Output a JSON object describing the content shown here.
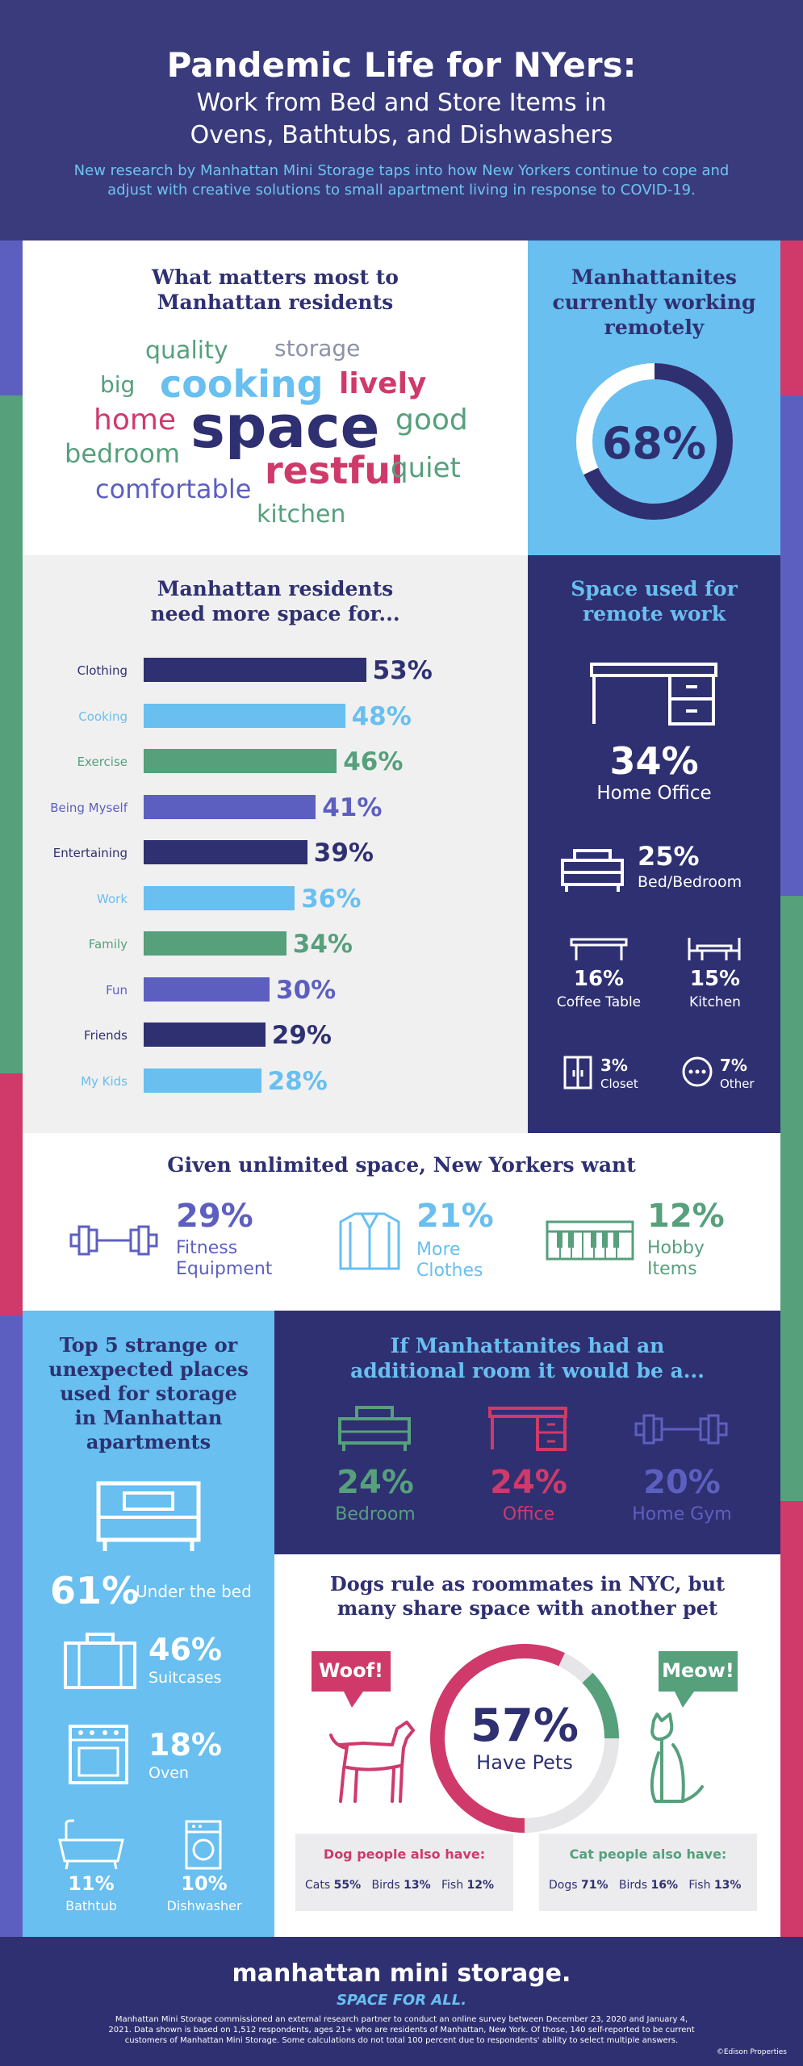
{
  "header": {
    "title": "Pandemic Life for NYers:",
    "subtitle_line1": "Work from Bed and Store Items in",
    "subtitle_line2": "Ovens, Bathtubs, and Dishwashers",
    "description": "New research by Manhattan Mini Storage taps into how New Yorkers continue to cope and adjust with creative solutions to small apartment living in response to COVID-19."
  },
  "colors": {
    "navy": "#2f3071",
    "light_blue": "#68bff0",
    "green": "#56a07c",
    "pink": "#cf3a6a",
    "purple": "#5d5fc0"
  },
  "word_cloud": {
    "title_line1": "What matters most to",
    "title_line2": "Manhattan residents",
    "words": [
      "quality",
      "storage",
      "big",
      "cooking",
      "lively",
      "home",
      "space",
      "good",
      "bedroom",
      "restful",
      "quiet",
      "comfortable",
      "kitchen"
    ]
  },
  "remote": {
    "title_line1": "Manhattanites",
    "title_line2": "currently working",
    "title_line3": "remotely",
    "value_label": "68%",
    "value": 68
  },
  "space_needs": {
    "title_line1": "Manhattan residents",
    "title_line2": "need more space for..."
  },
  "chart_data": {
    "type": "bar",
    "title": "Manhattan residents need more space for...",
    "categories": [
      "Clothing",
      "Cooking",
      "Exercise",
      "Being Myself",
      "Entertaining",
      "Work",
      "Family",
      "Fun",
      "Friends",
      "My Kids"
    ],
    "values": [
      53,
      48,
      46,
      41,
      39,
      36,
      34,
      30,
      29,
      28
    ],
    "value_labels": [
      "53%",
      "48%",
      "46%",
      "41%",
      "39%",
      "36%",
      "34%",
      "30%",
      "29%",
      "28%"
    ],
    "unit": "%"
  },
  "remote_space": {
    "title_line1": "Space used for",
    "title_line2": "remote work",
    "home_office": {
      "value": "34%",
      "label": "Home Office"
    },
    "bedroom": {
      "value": "25%",
      "label": "Bed/Bedroom"
    },
    "coffee_table": {
      "value": "16%",
      "label": "Coffee Table"
    },
    "kitchen": {
      "value": "15%",
      "label": "Kitchen"
    },
    "closet": {
      "value": "3%",
      "label": "Closet"
    },
    "other": {
      "value": "7%",
      "label": "Other"
    }
  },
  "unlimited": {
    "title": "Given unlimited space, New Yorkers want",
    "items": [
      {
        "value": "29%",
        "label1": "Fitness",
        "label2": "Equipment"
      },
      {
        "value": "21%",
        "label1": "More",
        "label2": "Clothes"
      },
      {
        "value": "12%",
        "label1": "Hobby",
        "label2": "Items"
      }
    ]
  },
  "strange": {
    "title_line1": "Top 5 strange or",
    "title_line2": "unexpected places",
    "title_line3": "used for storage",
    "title_line4": "in Manhattan",
    "title_line5": "apartments",
    "bed": {
      "value": "61%",
      "label": "Under the bed"
    },
    "suitcases": {
      "value": "46%",
      "label": "Suitcases"
    },
    "oven": {
      "value": "18%",
      "label": "Oven"
    },
    "bathtub": {
      "value": "11%",
      "label": "Bathtub"
    },
    "dishwasher": {
      "value": "10%",
      "label": "Dishwasher"
    }
  },
  "extra_room": {
    "title_line1": "If Manhattanites had an",
    "title_line2": "additional room it would be a...",
    "items": [
      {
        "value": "24%",
        "label": "Bedroom"
      },
      {
        "value": "24%",
        "label": "Office"
      },
      {
        "value": "20%",
        "label": "Home Gym"
      }
    ]
  },
  "pets": {
    "title_line1": "Dogs rule as roommates in NYC, but",
    "title_line2": "many share space with another pet",
    "woof": "Woof!",
    "meow": "Meow!",
    "value_label": "57%",
    "value": 57,
    "caption": "Have Pets",
    "dog_box": {
      "title": "Dog people also have:",
      "items": [
        {
          "label": "Cats",
          "value": "55%"
        },
        {
          "label": "Birds",
          "value": "13%"
        },
        {
          "label": "Fish",
          "value": "12%"
        }
      ]
    },
    "cat_box": {
      "title": "Cat people also have:",
      "items": [
        {
          "label": "Dogs",
          "value": "71%"
        },
        {
          "label": "Birds",
          "value": "16%"
        },
        {
          "label": "Fish",
          "value": "13%"
        }
      ]
    }
  },
  "footer": {
    "brand": "manhattan mini storage.",
    "tagline": "SPACE FOR ALL.",
    "note": "Manhattan Mini Storage commissioned an external research partner to conduct an online survey between December 23, 2020 and January 4, 2021. Data shown is based on 1,512 respondents, ages 21+ who are residents of Manhattan, New York. Of those, 140 self-reported to be current customers of Manhattan Mini Storage. Some calculations do not total 100 percent due to respondents' ability to select multiple answers.",
    "credit": "©Edison Properties"
  }
}
